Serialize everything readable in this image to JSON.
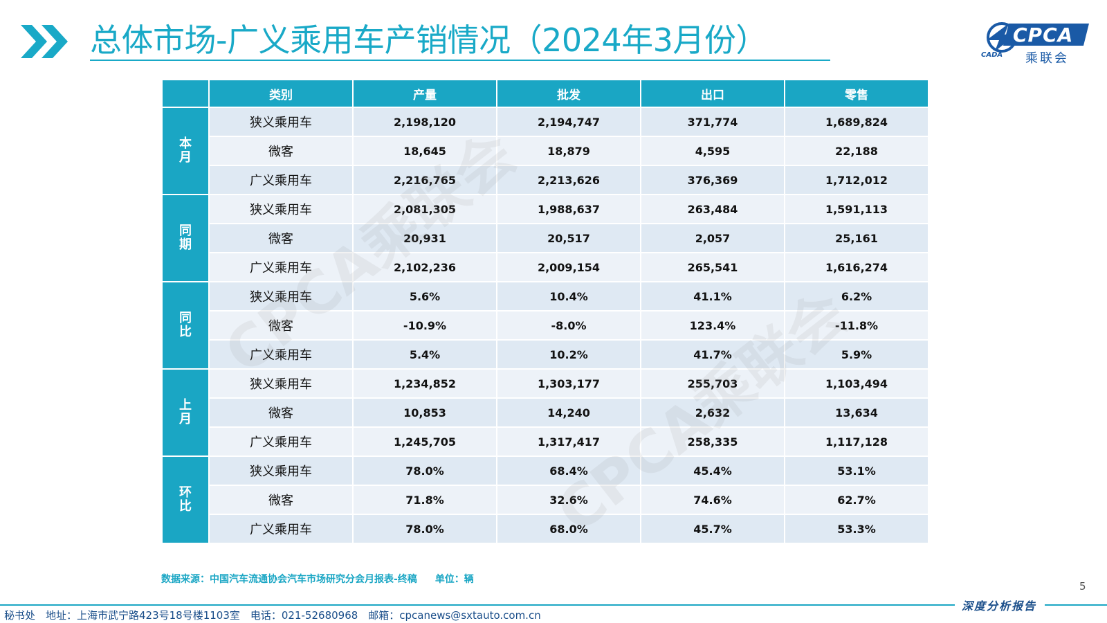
{
  "header": {
    "title": "总体市场-广义乘用车产销情况（2024年3月份）",
    "logo_text": "CPCA",
    "logo_subtitle": "乘联会",
    "logo_abbrev": "CADA",
    "accent_color": "#1aa6c4"
  },
  "table": {
    "headers": [
      "类别",
      "产量",
      "批发",
      "出口",
      "零售"
    ],
    "groups": [
      {
        "label": "本月",
        "rows": [
          {
            "category": "狭义乘用车",
            "values": [
              "2,198,120",
              "2,194,747",
              "371,774",
              "1,689,824"
            ]
          },
          {
            "category": "微客",
            "values": [
              "18,645",
              "18,879",
              "4,595",
              "22,188"
            ]
          },
          {
            "category": "广义乘用车",
            "values": [
              "2,216,765",
              "2,213,626",
              "376,369",
              "1,712,012"
            ]
          }
        ]
      },
      {
        "label": "同期",
        "rows": [
          {
            "category": "狭义乘用车",
            "values": [
              "2,081,305",
              "1,988,637",
              "263,484",
              "1,591,113"
            ]
          },
          {
            "category": "微客",
            "values": [
              "20,931",
              "20,517",
              "2,057",
              "25,161"
            ]
          },
          {
            "category": "广义乘用车",
            "values": [
              "2,102,236",
              "2,009,154",
              "265,541",
              "1,616,274"
            ]
          }
        ]
      },
      {
        "label": "同比",
        "rows": [
          {
            "category": "狭义乘用车",
            "values": [
              "5.6%",
              "10.4%",
              "41.1%",
              "6.2%"
            ]
          },
          {
            "category": "微客",
            "values": [
              "-10.9%",
              "-8.0%",
              "123.4%",
              "-11.8%"
            ]
          },
          {
            "category": "广义乘用车",
            "values": [
              "5.4%",
              "10.2%",
              "41.7%",
              "5.9%"
            ]
          }
        ]
      },
      {
        "label": "上月",
        "rows": [
          {
            "category": "狭义乘用车",
            "values": [
              "1,234,852",
              "1,303,177",
              "255,703",
              "1,103,494"
            ]
          },
          {
            "category": "微客",
            "values": [
              "10,853",
              "14,240",
              "2,632",
              "13,634"
            ]
          },
          {
            "category": "广义乘用车",
            "values": [
              "1,245,705",
              "1,317,417",
              "258,335",
              "1,117,128"
            ]
          }
        ]
      },
      {
        "label": "环比",
        "rows": [
          {
            "category": "狭义乘用车",
            "values": [
              "78.0%",
              "68.4%",
              "45.4%",
              "53.1%"
            ]
          },
          {
            "category": "微客",
            "values": [
              "71.8%",
              "32.6%",
              "74.6%",
              "62.7%"
            ]
          },
          {
            "category": "广义乘用车",
            "values": [
              "78.0%",
              "68.0%",
              "45.7%",
              "53.3%"
            ]
          }
        ]
      }
    ]
  },
  "watermark": "CPCA乘联会",
  "source": {
    "text": "数据来源：中国汽车流通协会汽车市场研究分会月报表-终稿",
    "unit": "单位：辆"
  },
  "page_number": "5",
  "footer": {
    "report_label": "深度分析报告",
    "contact": "秘书处　地址：上海市武宁路423号18号楼1103室　电话：021-52680968　邮箱：cpcanews@sxtauto.com.cn"
  }
}
